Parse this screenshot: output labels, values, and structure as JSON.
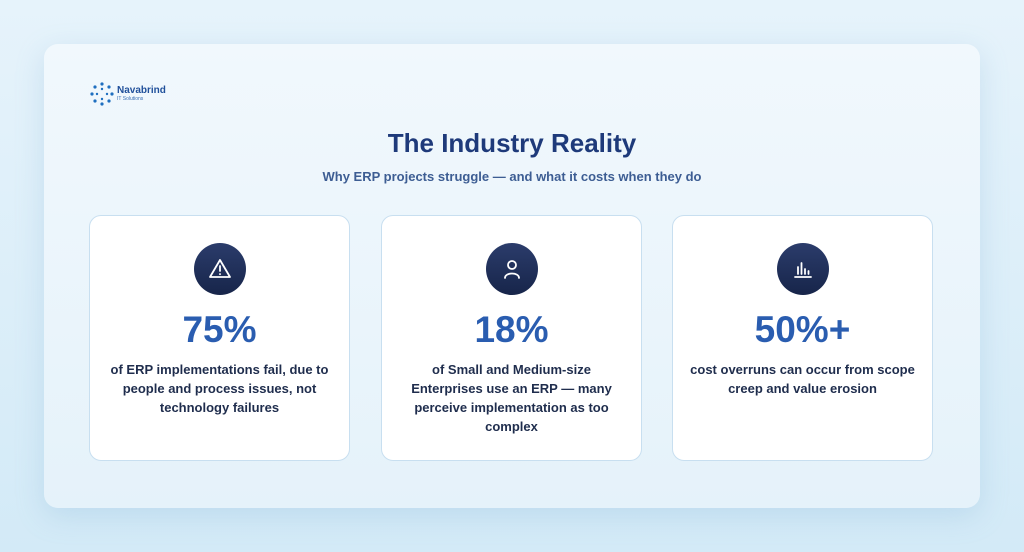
{
  "logo": {
    "name": "Navabrind",
    "tagline": "IT Solutions"
  },
  "header": {
    "title": "The Industry Reality",
    "subtitle": "Why ERP projects struggle — and what it costs when they do"
  },
  "cards": [
    {
      "stat": "75%",
      "text": "of ERP implementations fail, due to people and process issues, not technology failures"
    },
    {
      "stat": "18%",
      "text": "of Small and Medium-size Enterprises use an ERP — many perceive implementation as too complex"
    },
    {
      "stat": "50%+",
      "text": "cost overruns can occur from scope creep and value erosion"
    }
  ]
}
